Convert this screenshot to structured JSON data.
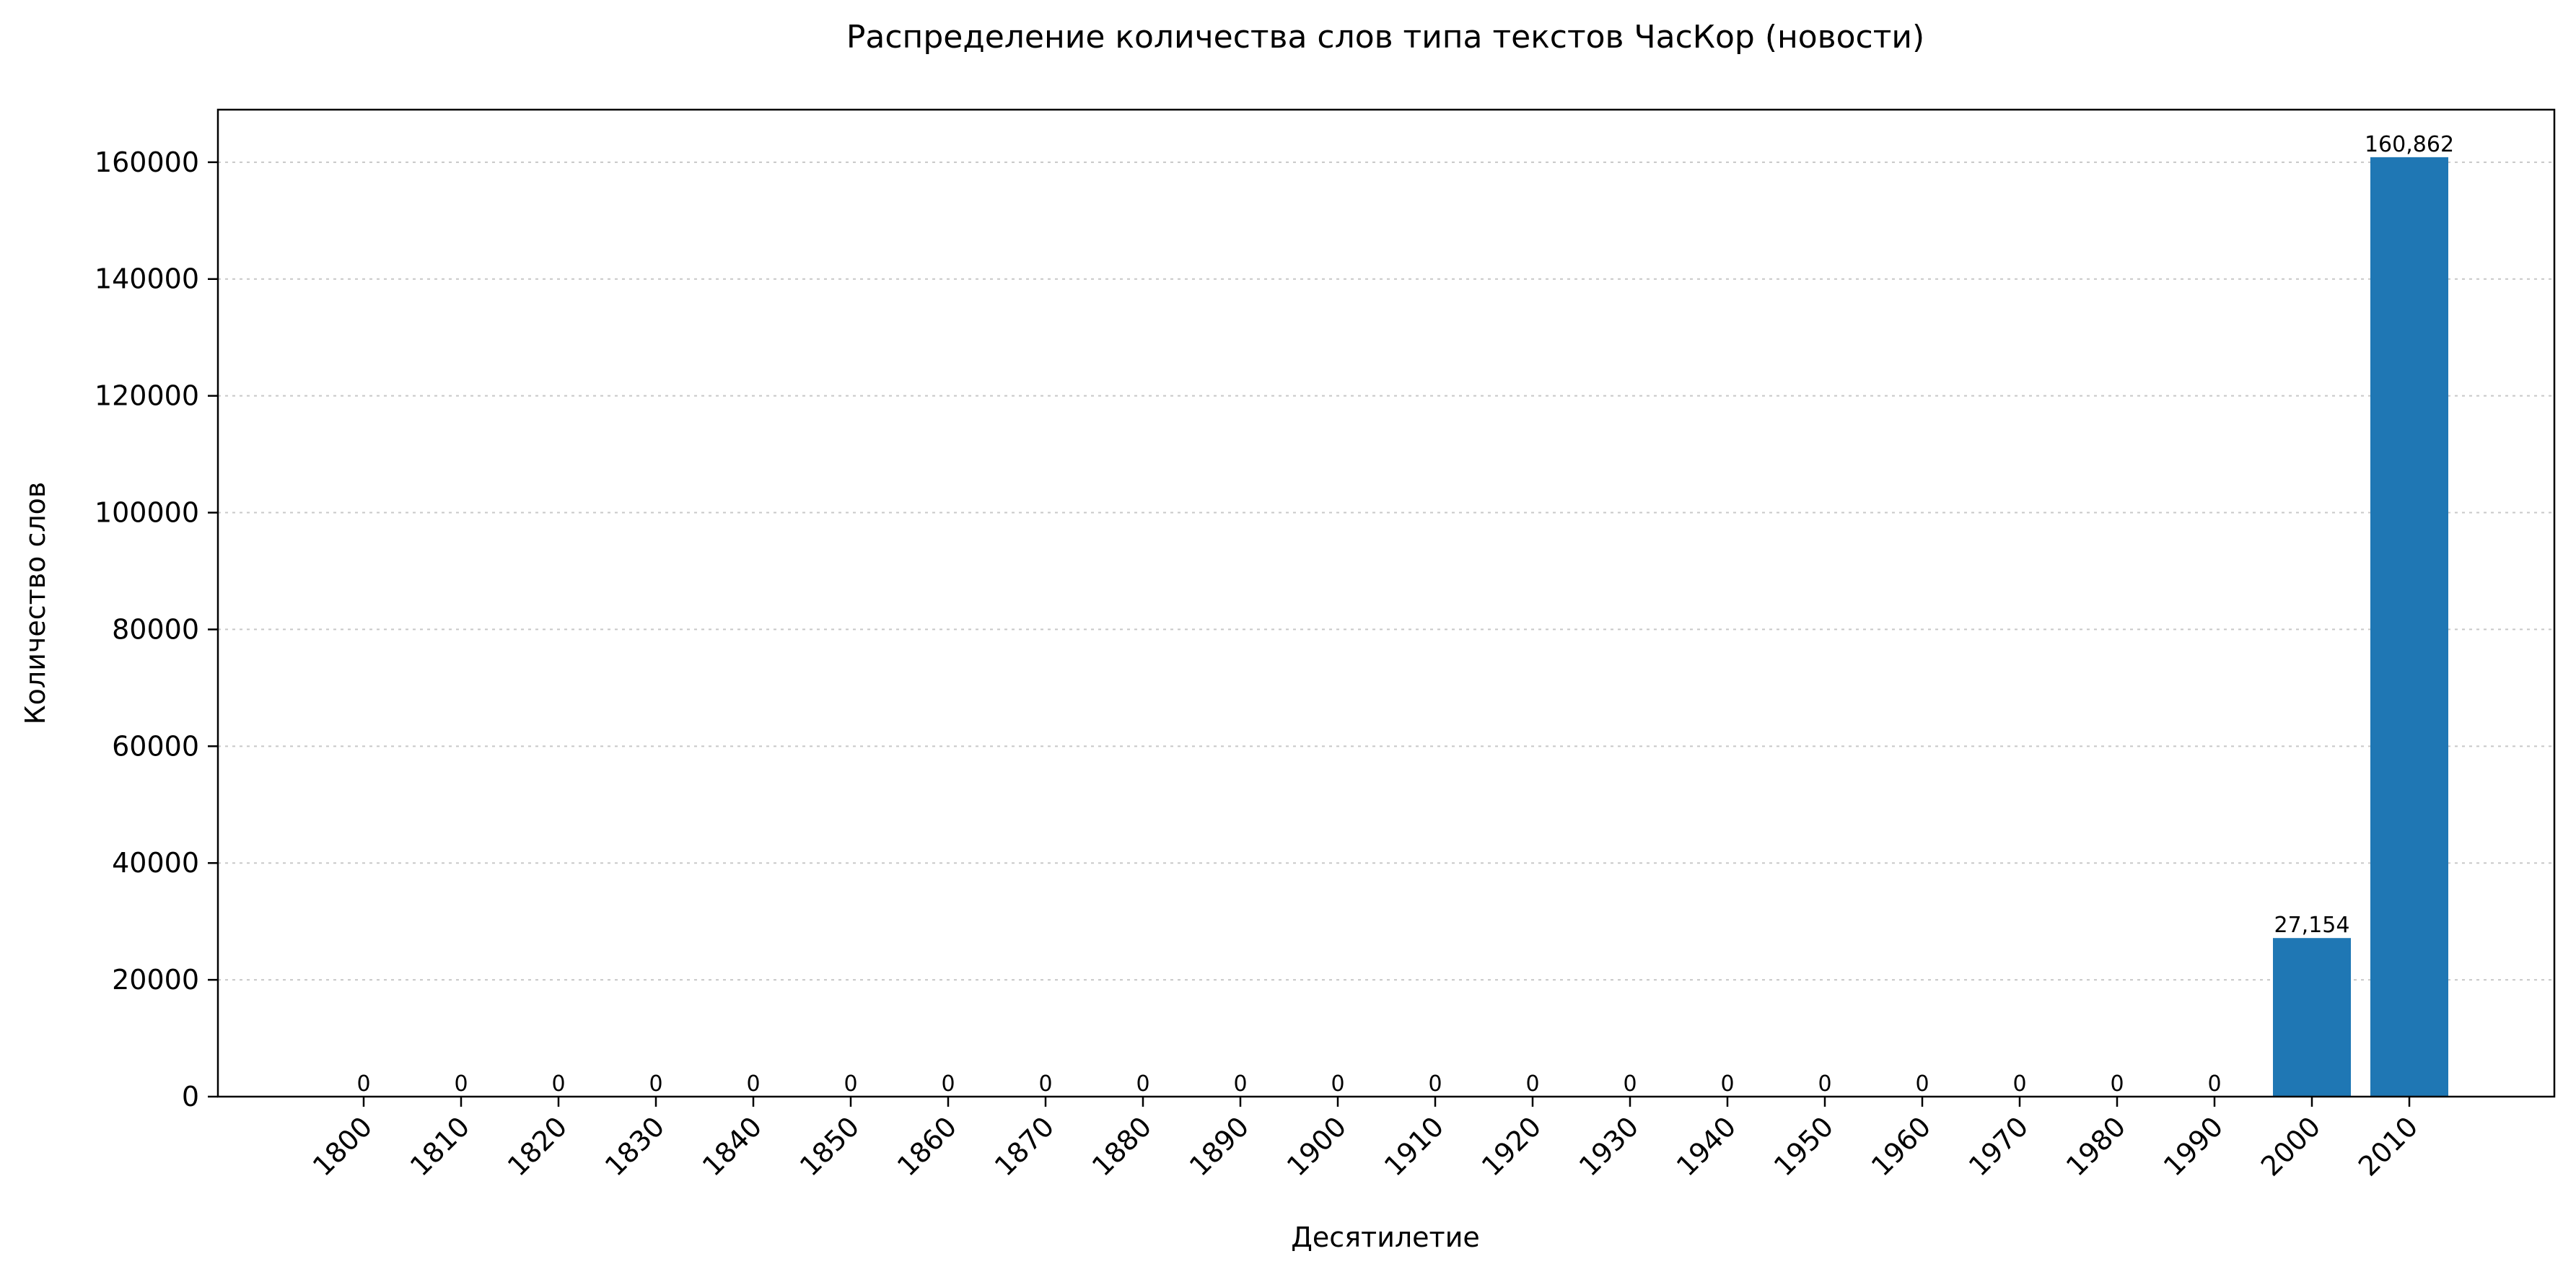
{
  "chart_data": {
    "type": "bar",
    "title": "Распределение количества слов типа текстов ЧасКор (новости)",
    "xlabel": "Десятилетие",
    "ylabel": "Количество слов",
    "categories": [
      "1800",
      "1810",
      "1820",
      "1830",
      "1840",
      "1850",
      "1860",
      "1870",
      "1880",
      "1890",
      "1900",
      "1910",
      "1920",
      "1930",
      "1940",
      "1950",
      "1960",
      "1970",
      "1980",
      "1990",
      "2000",
      "2010"
    ],
    "values": [
      0,
      0,
      0,
      0,
      0,
      0,
      0,
      0,
      0,
      0,
      0,
      0,
      0,
      0,
      0,
      0,
      0,
      0,
      0,
      0,
      27154,
      160862
    ],
    "value_labels": [
      "0",
      "0",
      "0",
      "0",
      "0",
      "0",
      "0",
      "0",
      "0",
      "0",
      "0",
      "0",
      "0",
      "0",
      "0",
      "0",
      "0",
      "0",
      "0",
      "0",
      "27,154",
      "160,862"
    ],
    "ylim": [
      0,
      169000
    ],
    "yticks": [
      0,
      20000,
      40000,
      60000,
      80000,
      100000,
      120000,
      140000,
      160000
    ],
    "grid": "y-dotted",
    "bar_color": "#1f77b4"
  }
}
